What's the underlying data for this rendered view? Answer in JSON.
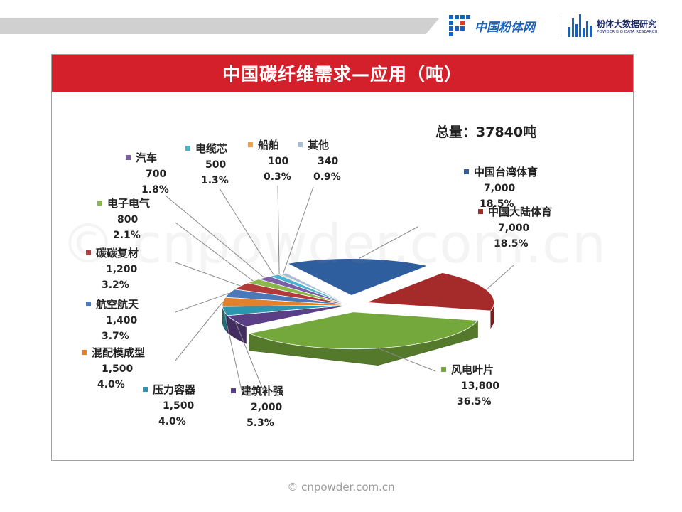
{
  "header": {
    "brand1_name": "中国粉体网",
    "brand2_title": "粉体大数据研究",
    "brand2_sub": "POWDER BIG DATA RESEARCH"
  },
  "total_label": "总量：37840吨",
  "watermark": "© cnpowder.com.cn",
  "footer": "© cnpowder.com.cn",
  "chart_data": {
    "type": "pie",
    "title": "中国碳纤维需求—应用（吨）",
    "total": 37840,
    "unit": "吨",
    "legend": "labels",
    "slices": [
      {
        "name": "中国台湾体育",
        "value": 7000,
        "value_label": "7,000",
        "percent_label": "18.5%",
        "color": "#2e5e9e"
      },
      {
        "name": "中国大陆体育",
        "value": 7000,
        "value_label": "7,000",
        "percent_label": "18.5%",
        "color": "#a52a2a"
      },
      {
        "name": "风电叶片",
        "value": 13800,
        "value_label": "13,800",
        "percent_label": "36.5%",
        "color": "#74a83c"
      },
      {
        "name": "建筑补强",
        "value": 2000,
        "value_label": "2,000",
        "percent_label": "5.3%",
        "color": "#5b3f86"
      },
      {
        "name": "压力容器",
        "value": 1500,
        "value_label": "1,500",
        "percent_label": "4.0%",
        "color": "#2e95ae"
      },
      {
        "name": "混配模成型",
        "value": 1500,
        "value_label": "1,500",
        "percent_label": "4.0%",
        "color": "#e0822c"
      },
      {
        "name": "航空航天",
        "value": 1400,
        "value_label": "1,400",
        "percent_label": "3.7%",
        "color": "#4a78b8"
      },
      {
        "name": "碳碳复材",
        "value": 1200,
        "value_label": "1,200",
        "percent_label": "3.2%",
        "color": "#b23a3a"
      },
      {
        "name": "电子电气",
        "value": 800,
        "value_label": "800",
        "percent_label": "2.1%",
        "color": "#8ab84a"
      },
      {
        "name": "汽车",
        "value": 700,
        "value_label": "700",
        "percent_label": "1.8%",
        "color": "#7c5fa6"
      },
      {
        "name": "电缆芯",
        "value": 500,
        "value_label": "500",
        "percent_label": "1.3%",
        "color": "#48b4d0"
      },
      {
        "name": "船舶",
        "value": 100,
        "value_label": "100",
        "percent_label": "0.3%",
        "color": "#f0a04a"
      },
      {
        "name": "其他",
        "value": 340,
        "value_label": "340",
        "percent_label": "0.9%",
        "color": "#a8bcd8"
      }
    ]
  }
}
